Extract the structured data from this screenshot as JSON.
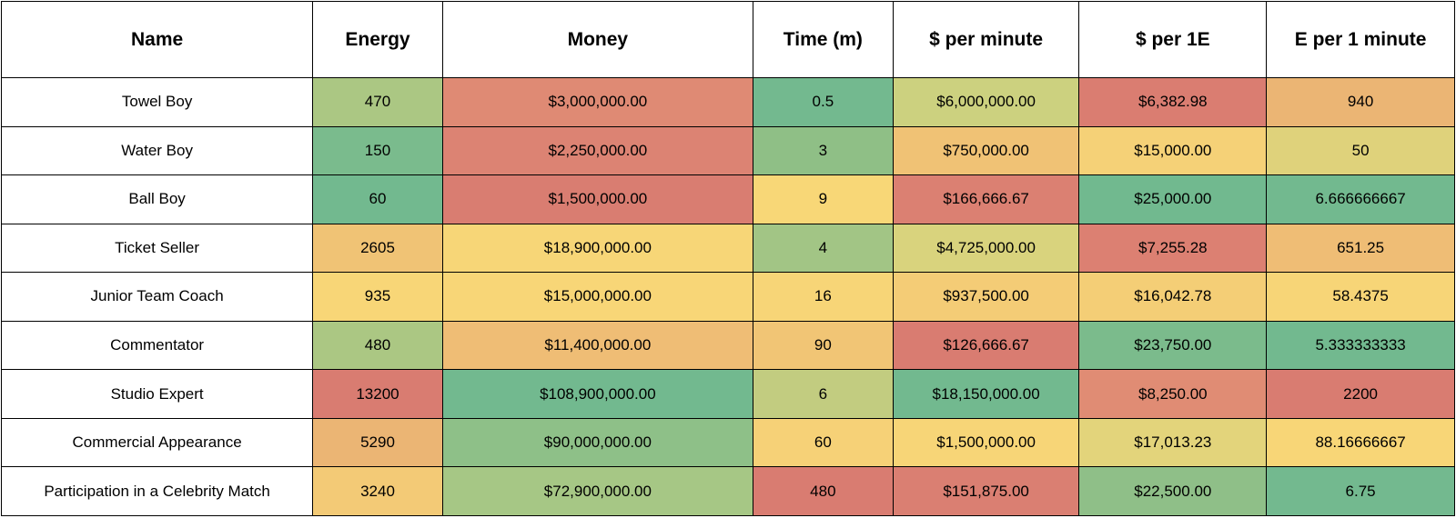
{
  "table": {
    "columns": [
      "Name",
      "Energy",
      "Money",
      "Time (m)",
      "$ per minute",
      "$ per 1E",
      "E per 1 minute"
    ],
    "rows": [
      {
        "cells": [
          "Towel Boy",
          "470",
          "$3,000,000.00",
          "0.5",
          "$6,000,000.00",
          "$6,382.98",
          "940"
        ],
        "colors": [
          null,
          "#abc783",
          "#df8a74",
          "#73b98f",
          "#ccd17f",
          "#da7d71",
          "#ebb574"
        ]
      },
      {
        "cells": [
          "Water Boy",
          "150",
          "$2,250,000.00",
          "3",
          "$750,000.00",
          "$15,000.00",
          "50"
        ],
        "colors": [
          null,
          "#7abb8d",
          "#dc8373",
          "#8fbf86",
          "#f0c275",
          "#f5d177",
          "#dfd27b"
        ]
      },
      {
        "cells": [
          "Ball Boy",
          "60",
          "$1,500,000.00",
          "9",
          "$166,666.67",
          "$25,000.00",
          "6.666666667"
        ],
        "colors": [
          null,
          "#72b98f",
          "#d97d71",
          "#f8d777",
          "#db8072",
          "#71b98f",
          "#72b98f"
        ]
      },
      {
        "cells": [
          "Ticket Seller",
          "2605",
          "$18,900,000.00",
          "4",
          "$4,725,000.00",
          "$7,255.28",
          "651.25"
        ],
        "colors": [
          null,
          "#f0c375",
          "#f7d677",
          "#a2c585",
          "#d9d37d",
          "#dc8072",
          "#efbd75"
        ]
      },
      {
        "cells": [
          "Junior Team Coach",
          "935",
          "$15,000,000.00",
          "16",
          "$937,500.00",
          "$16,042.78",
          "58.4375"
        ],
        "colors": [
          null,
          "#f8d677",
          "#f8d677",
          "#f7d577",
          "#f4cc76",
          "#f4ce76",
          "#f7d577"
        ]
      },
      {
        "cells": [
          "Commentator",
          "480",
          "$11,400,000.00",
          "90",
          "$126,666.67",
          "$23,750.00",
          "5.333333333"
        ],
        "colors": [
          null,
          "#abc783",
          "#efbd75",
          "#f1c575",
          "#d97c71",
          "#7bbb8c",
          "#72b98f"
        ]
      },
      {
        "cells": [
          "Studio Expert",
          "13200",
          "$108,900,000.00",
          "6",
          "$18,150,000.00",
          "$8,250.00",
          "2200"
        ],
        "colors": [
          null,
          "#d97c71",
          "#72b98f",
          "#c2cc80",
          "#72b98f",
          "#e08c74",
          "#d97c71"
        ]
      },
      {
        "cells": [
          "Commercial Appearance",
          "5290",
          "$90,000,000.00",
          "60",
          "$1,500,000.00",
          "$17,013.23",
          "88.16666667"
        ],
        "colors": [
          null,
          "#ebb574",
          "#8ec088",
          "#f6d177",
          "#f7d577",
          "#e3d47b",
          "#f8d677"
        ]
      },
      {
        "cells": [
          "Participation in a Celebrity Match",
          "3240",
          "$72,900,000.00",
          "480",
          "$151,875.00",
          "$22,500.00",
          "6.75"
        ],
        "colors": [
          null,
          "#f3ca76",
          "#a6c785",
          "#d97c71",
          "#da7f72",
          "#8fbf88",
          "#73b98f"
        ]
      }
    ]
  }
}
